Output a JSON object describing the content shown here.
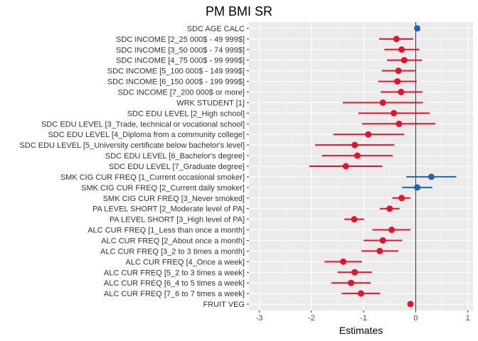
{
  "chart_data": {
    "type": "forest",
    "title": "PM BMI SR",
    "xlabel": "Estimates",
    "ylabel": "",
    "xlim": [
      -3.2,
      1.1
    ],
    "xticks": [
      -3,
      -2,
      -1,
      0,
      1
    ],
    "grid": true,
    "legend": "none",
    "colors": {
      "positive": "#2166ac",
      "negative": "#e8112d",
      "panel": "#ebebeb",
      "grid": "#ffffff",
      "zero_line": "#000000"
    },
    "terms": [
      {
        "label": "SDC AGE CALC",
        "estimate": 0.03,
        "low": 0.02,
        "high": 0.04
      },
      {
        "label": "SDC INCOME [2_25 000$ - 49 999$]",
        "estimate": -0.37,
        "low": -0.7,
        "high": -0.05
      },
      {
        "label": "SDC INCOME [3_50 000$ - 74 999$]",
        "estimate": -0.27,
        "low": -0.6,
        "high": 0.07
      },
      {
        "label": "SDC INCOME [4_75 000$ - 99 999$]",
        "estimate": -0.22,
        "low": -0.55,
        "high": 0.12
      },
      {
        "label": "SDC INCOME [5_100 000$ - 149 999$]",
        "estimate": -0.33,
        "low": -0.65,
        "high": -0.01
      },
      {
        "label": "SDC INCOME [6_150 000$ - 199 999$]",
        "estimate": -0.35,
        "low": -0.72,
        "high": 0.02
      },
      {
        "label": "SDC INCOME [7_200 000$ or more]",
        "estimate": -0.28,
        "low": -0.67,
        "high": 0.13
      },
      {
        "label": "WRK STUDENT [1]",
        "estimate": -0.63,
        "low": -1.4,
        "high": 0.14
      },
      {
        "label": "SDC EDU LEVEL [2_High school]",
        "estimate": -0.42,
        "low": -1.1,
        "high": 0.27
      },
      {
        "label": "SDC EDU LEVEL [3_Trade, technical or vocational school]",
        "estimate": -0.32,
        "low": -1.03,
        "high": 0.38
      },
      {
        "label": "SDC EDU LEVEL [4_Diploma from a community college]",
        "estimate": -0.91,
        "low": -1.58,
        "high": -0.22
      },
      {
        "label": "SDC EDU LEVEL [5_University certificate below bachelor's level]",
        "estimate": -1.17,
        "low": -1.93,
        "high": -0.41
      },
      {
        "label": "SDC EDU LEVEL [6_Bachelor's degree]",
        "estimate": -1.12,
        "low": -1.8,
        "high": -0.44
      },
      {
        "label": "SDC EDU LEVEL [7_Graduate degree]",
        "estimate": -1.34,
        "low": -2.04,
        "high": -0.64
      },
      {
        "label": "SMK CIG CUR FREQ [1_Current occasional smoker]",
        "estimate": 0.3,
        "low": -0.18,
        "high": 0.78
      },
      {
        "label": "SMK CIG CUR FREQ [2_Current daily smoker]",
        "estimate": 0.03,
        "low": -0.26,
        "high": 0.32
      },
      {
        "label": "SMK CIG CUR FREQ [3_Never smoked]",
        "estimate": -0.27,
        "low": -0.45,
        "high": -0.1
      },
      {
        "label": "PA LEVEL SHORT [2_Moderate level of PA]",
        "estimate": -0.5,
        "low": -0.69,
        "high": -0.31
      },
      {
        "label": "PA LEVEL SHORT [3_High level of PA]",
        "estimate": -1.18,
        "low": -1.37,
        "high": -0.99
      },
      {
        "label": "ALC CUR FREQ [1_Less than once a month]",
        "estimate": -0.46,
        "low": -0.83,
        "high": -0.1
      },
      {
        "label": "ALC CUR FREQ [2_About once a month]",
        "estimate": -0.63,
        "low": -1.0,
        "high": -0.26
      },
      {
        "label": "ALC CUR FREQ [3_2 to 3 times a month]",
        "estimate": -0.69,
        "low": -1.04,
        "high": -0.33
      },
      {
        "label": "ALC CUR FREQ [4_Once a week]",
        "estimate": -1.39,
        "low": -1.75,
        "high": -1.03
      },
      {
        "label": "ALC CUR FREQ [5_2 to 3 times a week]",
        "estimate": -1.17,
        "low": -1.5,
        "high": -0.84
      },
      {
        "label": "ALC CUR FREQ [6_4 to 5 times a week]",
        "estimate": -1.24,
        "low": -1.62,
        "high": -0.86
      },
      {
        "label": "ALC CUR FREQ [7_6 to 7 times a week]",
        "estimate": -1.05,
        "low": -1.42,
        "high": -0.68
      },
      {
        "label": "FRUIT VEG",
        "estimate": -0.1,
        "low": -0.12,
        "high": -0.08
      }
    ]
  }
}
